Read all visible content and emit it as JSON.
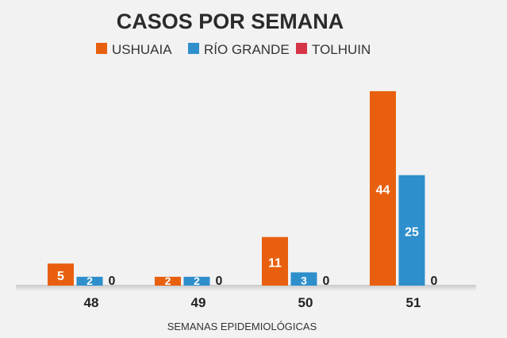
{
  "chart_data": {
    "type": "bar",
    "title": "CASOS POR SEMANA",
    "xlabel": "SEMANAS EPIDEMIOLÓGICAS",
    "ylabel": "",
    "categories": [
      "48",
      "49",
      "50",
      "51"
    ],
    "series": [
      {
        "name": "USHUAIA",
        "color": "#e8600f",
        "values": [
          5,
          2,
          11,
          44
        ]
      },
      {
        "name": "RÍO GRANDE",
        "color": "#2e8fcc",
        "values": [
          2,
          2,
          3,
          25
        ]
      },
      {
        "name": "TOLHUIN",
        "color": "#d63447",
        "values": [
          0,
          0,
          0,
          0
        ]
      }
    ],
    "legend": "top",
    "grid": false,
    "data_labels": true
  }
}
